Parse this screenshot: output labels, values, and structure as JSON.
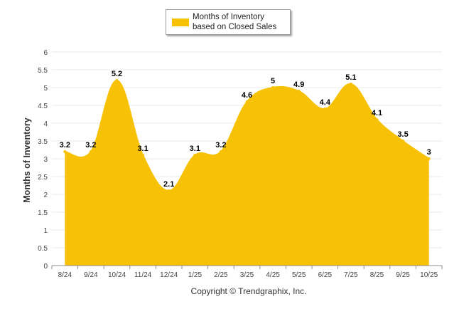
{
  "chart_data": {
    "type": "area",
    "title": "",
    "categories": [
      "8/24",
      "9/24",
      "10/24",
      "11/24",
      "12/24",
      "1/25",
      "2/25",
      "3/25",
      "4/25",
      "5/25",
      "6/25",
      "7/25",
      "8/25",
      "9/25",
      "10/25"
    ],
    "series": [
      {
        "name": "Months of Inventory based on Closed Sales",
        "values": [
          3.2,
          3.2,
          5.2,
          3.1,
          2.1,
          3.1,
          3.2,
          4.6,
          5,
          4.9,
          4.4,
          5.1,
          4.1,
          3.5,
          3
        ],
        "color": "#F7C205"
      }
    ],
    "data_labels": [
      "3.2",
      "3.2",
      "5.2",
      "3.1",
      "2.1",
      "3.1",
      "3.2",
      "4.6",
      "5",
      "4.9",
      "4.4",
      "5.1",
      "4.1",
      "3.5",
      "3"
    ],
    "ylabel": "Months of Inventory",
    "xlabel": "",
    "ylim": [
      0,
      6
    ],
    "yticks": [
      "0",
      "0.5",
      "1",
      "1.5",
      "2",
      "2.5",
      "3",
      "3.5",
      "4",
      "4.5",
      "5",
      "5.5",
      "6"
    ],
    "grid": true,
    "legend_position": "top-center"
  },
  "legend": {
    "label": "Months of Inventory based on Closed Sales"
  },
  "footer": {
    "copyright": "Copyright © Trendgraphix, Inc."
  },
  "colors": {
    "area": "#F7C205",
    "grid": "#e8e8e8",
    "axis": "#8c8c8c"
  }
}
